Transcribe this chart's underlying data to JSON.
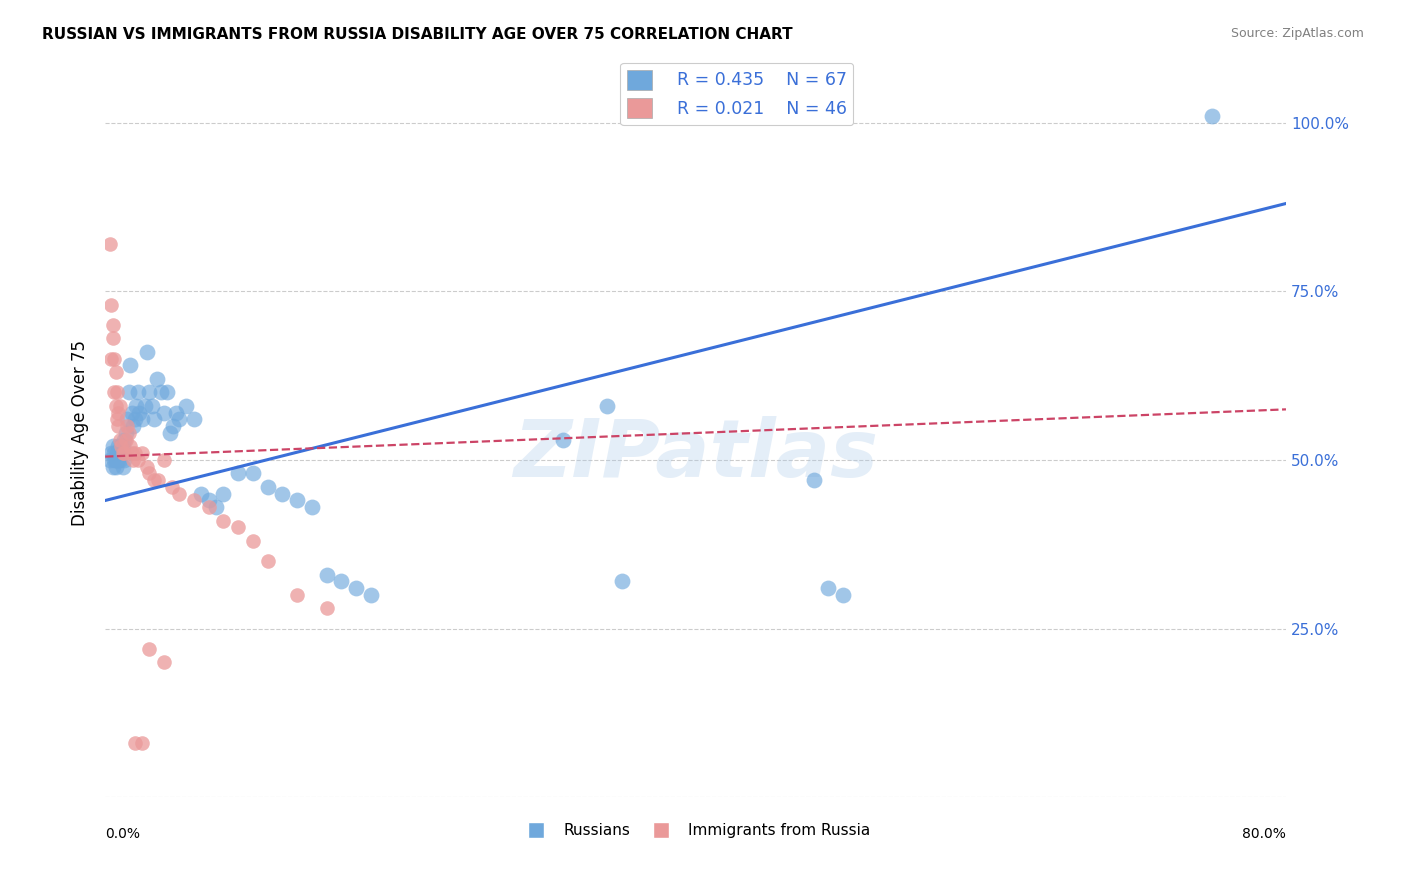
{
  "title": "RUSSIAN VS IMMIGRANTS FROM RUSSIA DISABILITY AGE OVER 75 CORRELATION CHART",
  "source": "Source: ZipAtlas.com",
  "ylabel": "Disability Age Over 75",
  "xlim": [
    0.0,
    0.8
  ],
  "ylim": [
    0.0,
    1.08
  ],
  "background_color": "#ffffff",
  "grid_color": "#cccccc",
  "blue_color": "#6fa8dc",
  "pink_color": "#ea9999",
  "blue_line_color": "#3a6fd8",
  "pink_line_color": "#cc4466",
  "watermark": "ZIPatlas",
  "legend_r_blue": "R = 0.435",
  "legend_n_blue": "N = 67",
  "legend_r_pink": "R = 0.021",
  "legend_n_pink": "N = 46",
  "legend_label_blue": "Russians",
  "legend_label_pink": "Immigrants from Russia",
  "blue_line_x0": 0.0,
  "blue_line_y0": 0.44,
  "blue_line_x1": 0.8,
  "blue_line_y1": 0.88,
  "pink_line_x0": 0.0,
  "pink_line_y0": 0.505,
  "pink_line_x1": 0.8,
  "pink_line_y1": 0.575,
  "russians_x": [
    0.003,
    0.004,
    0.005,
    0.005,
    0.006,
    0.006,
    0.007,
    0.007,
    0.008,
    0.008,
    0.009,
    0.009,
    0.01,
    0.01,
    0.011,
    0.011,
    0.012,
    0.012,
    0.013,
    0.013,
    0.014,
    0.015,
    0.016,
    0.017,
    0.018,
    0.019,
    0.02,
    0.021,
    0.022,
    0.023,
    0.025,
    0.027,
    0.028,
    0.03,
    0.032,
    0.033,
    0.035,
    0.038,
    0.04,
    0.042,
    0.044,
    0.046,
    0.048,
    0.05,
    0.055,
    0.06,
    0.065,
    0.07,
    0.075,
    0.08,
    0.09,
    0.1,
    0.11,
    0.12,
    0.13,
    0.14,
    0.15,
    0.16,
    0.17,
    0.18,
    0.31,
    0.34,
    0.35,
    0.48,
    0.49,
    0.5,
    0.75
  ],
  "russians_y": [
    0.5,
    0.51,
    0.49,
    0.52,
    0.5,
    0.51,
    0.5,
    0.49,
    0.51,
    0.5,
    0.52,
    0.5,
    0.51,
    0.5,
    0.52,
    0.51,
    0.49,
    0.52,
    0.5,
    0.53,
    0.54,
    0.56,
    0.6,
    0.64,
    0.57,
    0.55,
    0.56,
    0.58,
    0.6,
    0.57,
    0.56,
    0.58,
    0.66,
    0.6,
    0.58,
    0.56,
    0.62,
    0.6,
    0.57,
    0.6,
    0.54,
    0.55,
    0.57,
    0.56,
    0.58,
    0.56,
    0.45,
    0.44,
    0.43,
    0.45,
    0.48,
    0.48,
    0.46,
    0.45,
    0.44,
    0.43,
    0.33,
    0.32,
    0.31,
    0.3,
    0.53,
    0.58,
    0.32,
    0.47,
    0.31,
    0.3,
    1.01
  ],
  "immigrants_x": [
    0.003,
    0.004,
    0.004,
    0.005,
    0.005,
    0.006,
    0.006,
    0.007,
    0.007,
    0.008,
    0.008,
    0.009,
    0.009,
    0.01,
    0.01,
    0.011,
    0.012,
    0.013,
    0.014,
    0.015,
    0.016,
    0.017,
    0.018,
    0.019,
    0.02,
    0.022,
    0.025,
    0.028,
    0.03,
    0.033,
    0.036,
    0.04,
    0.045,
    0.05,
    0.06,
    0.07,
    0.08,
    0.09,
    0.1,
    0.11,
    0.13,
    0.15,
    0.02,
    0.025,
    0.03,
    0.04
  ],
  "immigrants_y": [
    0.82,
    0.73,
    0.65,
    0.7,
    0.68,
    0.65,
    0.6,
    0.63,
    0.58,
    0.6,
    0.56,
    0.57,
    0.55,
    0.58,
    0.53,
    0.52,
    0.51,
    0.51,
    0.53,
    0.55,
    0.54,
    0.52,
    0.51,
    0.5,
    0.51,
    0.5,
    0.51,
    0.49,
    0.48,
    0.47,
    0.47,
    0.5,
    0.46,
    0.45,
    0.44,
    0.43,
    0.41,
    0.4,
    0.38,
    0.35,
    0.3,
    0.28,
    0.08,
    0.08,
    0.22,
    0.2
  ]
}
